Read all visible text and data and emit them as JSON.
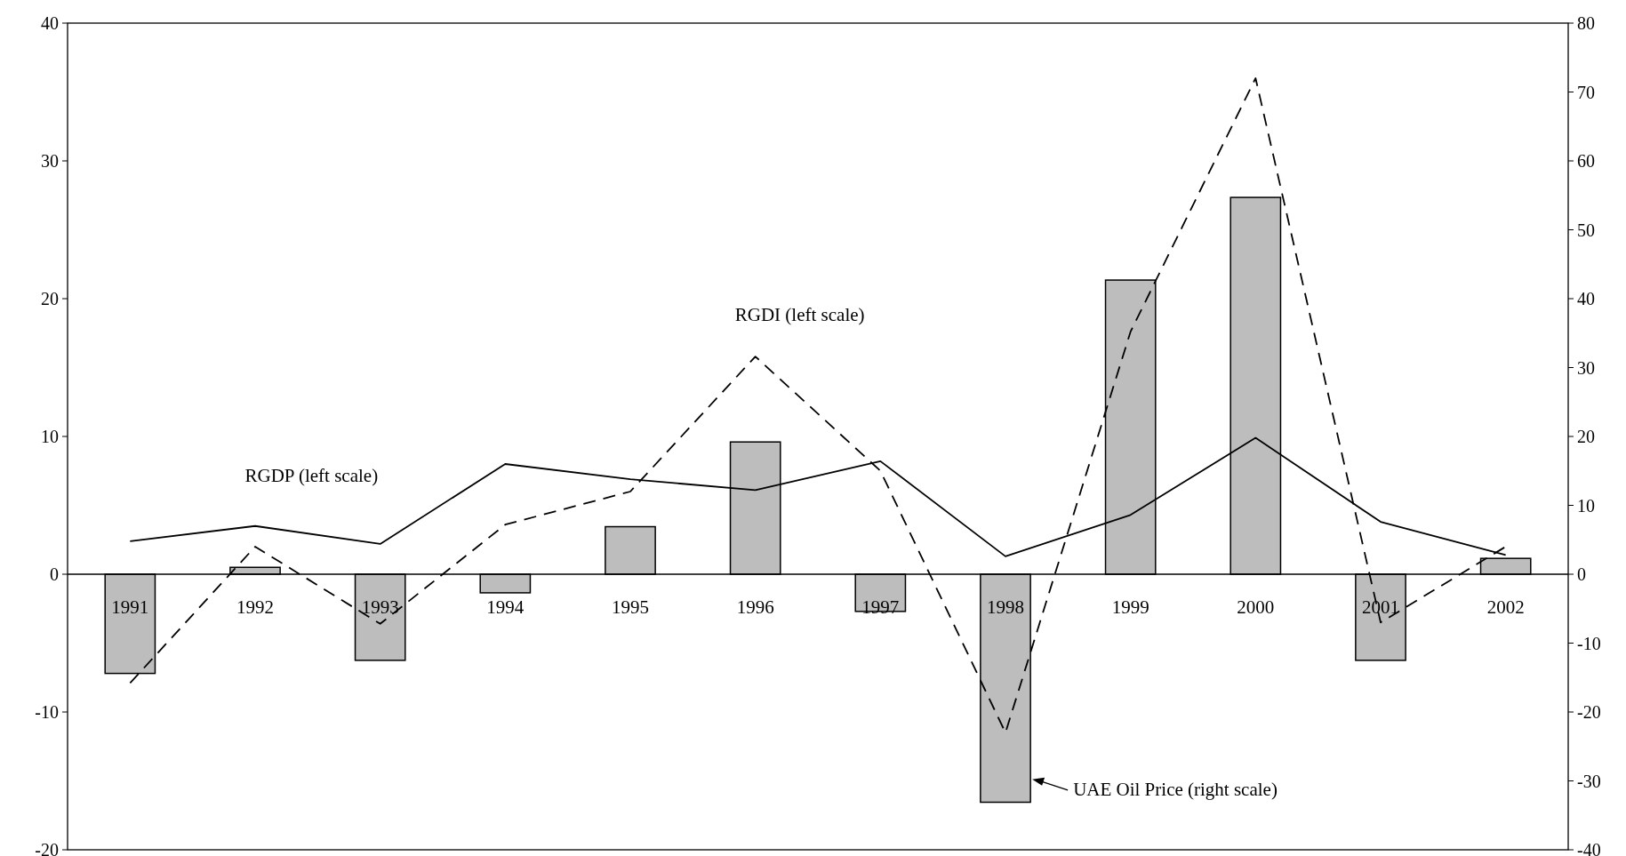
{
  "chart_data": {
    "type": "line",
    "categories": [
      "1991",
      "1992",
      "1993",
      "1994",
      "1995",
      "1996",
      "1997",
      "1998",
      "1999",
      "2000",
      "2001",
      "2002"
    ],
    "series": [
      {
        "name": "UAE Oil Price (right scale)",
        "type": "bar",
        "axis": "y2",
        "color": "#bdbdbd",
        "values": [
          -14.4,
          1.0,
          -12.5,
          -2.7,
          6.9,
          19.2,
          -5.4,
          -33.1,
          42.7,
          54.7,
          -12.5,
          2.3
        ]
      },
      {
        "name": "RGDP (left scale)",
        "color": "#000000",
        "line_style": "solid",
        "values": [
          2.4,
          3.5,
          2.2,
          8.0,
          6.9,
          6.1,
          8.2,
          1.3,
          4.3,
          9.9,
          3.8,
          1.4
        ]
      },
      {
        "name": "RGDI (left scale)",
        "color": "#000000",
        "line_style": "dashed",
        "values": [
          -7.9,
          2.0,
          -3.6,
          3.6,
          6.0,
          15.8,
          7.5,
          -11.5,
          17.6,
          36.0,
          -3.5,
          2.0
        ]
      }
    ],
    "ylim": [
      -20,
      40
    ],
    "yticks": [
      -20,
      -10,
      0,
      10,
      20,
      30,
      40
    ],
    "y2lim": [
      -40,
      80
    ],
    "y2ticks": [
      -40,
      -30,
      -20,
      -10,
      0,
      10,
      20,
      30,
      40,
      50,
      60,
      70,
      80
    ],
    "grid": false
  }
}
